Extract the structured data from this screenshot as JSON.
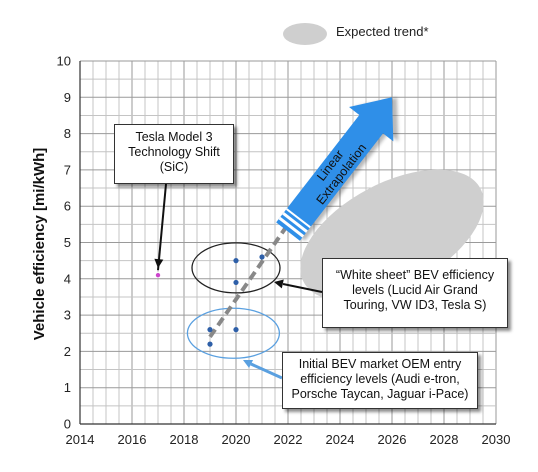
{
  "chart_data": {
    "type": "scatter",
    "ylabel": "Vehicle efficiency  [mi/kWh]",
    "xlabel": "",
    "xlim": [
      2014,
      2030
    ],
    "ylim": [
      0,
      10
    ],
    "x_ticks": [
      "2014",
      "2016",
      "2018",
      "2020",
      "2022",
      "2024",
      "2026",
      "2028",
      "2030"
    ],
    "y_ticks": [
      "0",
      "1",
      "2",
      "3",
      "4",
      "5",
      "6",
      "7",
      "8",
      "9",
      "10"
    ],
    "grid": true,
    "legend": {
      "label": "Expected trend*",
      "placement": "top-right"
    },
    "points": [
      {
        "x": 2017,
        "y": 4.1,
        "color": "#cc44cc"
      },
      {
        "x": 2019,
        "y": 2.2,
        "color": "#2e5fa8"
      },
      {
        "x": 2019,
        "y": 2.6,
        "color": "#2e5fa8"
      },
      {
        "x": 2020,
        "y": 2.6,
        "color": "#2e5fa8"
      },
      {
        "x": 2020,
        "y": 3.9,
        "color": "#2e5fa8"
      },
      {
        "x": 2020,
        "y": 4.5,
        "color": "#2e5fa8"
      },
      {
        "x": 2021,
        "y": 4.6,
        "color": "#2e5fa8"
      }
    ],
    "trend_line": {
      "from": {
        "x": 2019,
        "y": 2.4
      },
      "to": {
        "x": 2022,
        "y": 5.5
      }
    },
    "arrow": {
      "from": {
        "x": 2022,
        "y": 5.3
      },
      "to": {
        "x": 2026,
        "y": 9
      },
      "label": "Linear Extrapolation",
      "color": "#2f8fe8"
    },
    "expected_region": {
      "center": {
        "x": 2026,
        "y": 5.2
      },
      "color": "#cfcfcf"
    },
    "groups": [
      {
        "name": "white-sheet",
        "center": {
          "x": 2020,
          "y": 4.3
        },
        "border": "#222222"
      },
      {
        "name": "initial-entry",
        "center": {
          "x": 2019.9,
          "y": 2.5
        },
        "border": "#5aa0e0"
      }
    ]
  },
  "annotations": {
    "tesla": [
      "Tesla Model 3",
      "Technology Shift",
      "(SiC)"
    ],
    "white_sheet": [
      "“White sheet” BEV efficiency",
      "levels (Lucid Air Grand",
      "Touring, VW ID3, Tesla S)"
    ],
    "initial": [
      "Initial BEV market OEM entry",
      "efficiency levels (Audi e-tron,",
      "Porsche Taycan, Jaguar i-Pace)"
    ],
    "arrow_label_lines": [
      "Linear",
      "Extrapolation"
    ]
  },
  "legend_label": "Expected trend*"
}
